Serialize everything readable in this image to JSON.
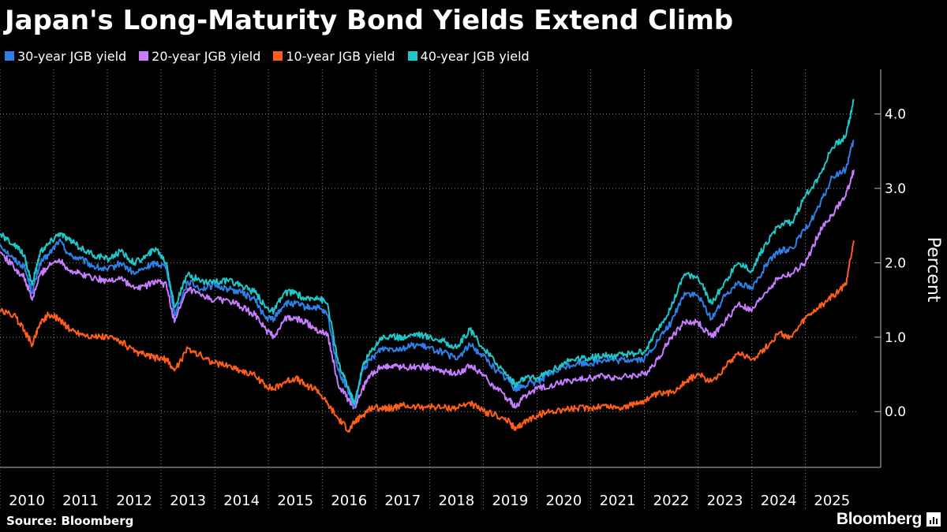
{
  "chart_data": {
    "type": "line",
    "title": "Japan's Long-Maturity Bond Yields Extend Climb",
    "ylabel": "Percent",
    "xlabel": "",
    "xlim": [
      2010.0,
      2025.99
    ],
    "ylim": [
      -0.75,
      4.6
    ],
    "yticks": [
      0.0,
      1.0,
      2.0,
      3.0,
      4.0
    ],
    "ytick_labels": [
      "0.0",
      "1.0",
      "2.0",
      "3.0",
      "4.0"
    ],
    "x_tick_labels": [
      "2010",
      "2011",
      "2012",
      "2013",
      "2014",
      "2015",
      "2016",
      "2017",
      "2018",
      "2019",
      "2020",
      "2021",
      "2022",
      "2023",
      "2024",
      "2025"
    ],
    "grid": "vertical dotted at year boundaries, horizontal dotted at y ticks",
    "legend_position": "top-left",
    "series": [
      {
        "name": "30-year JGB yield",
        "color": "#2f7fe6",
        "x": [
          2010.0,
          2010.25,
          2010.45,
          2010.6,
          2010.75,
          2010.9,
          2011.1,
          2011.3,
          2011.5,
          2011.75,
          2012.0,
          2012.25,
          2012.5,
          2012.75,
          2012.9,
          2013.1,
          2013.25,
          2013.5,
          2013.75,
          2014.0,
          2014.25,
          2014.5,
          2014.75,
          2014.95,
          2015.1,
          2015.3,
          2015.5,
          2015.7,
          2015.9,
          2016.1,
          2016.3,
          2016.5,
          2016.6,
          2016.75,
          2016.9,
          2017.1,
          2017.3,
          2017.5,
          2017.75,
          2018.0,
          2018.25,
          2018.5,
          2018.75,
          2019.0,
          2019.25,
          2019.5,
          2019.6,
          2019.75,
          2020.0,
          2020.25,
          2020.5,
          2020.75,
          2021.0,
          2021.25,
          2021.5,
          2021.75,
          2022.0,
          2022.25,
          2022.5,
          2022.75,
          2023.0,
          2023.25,
          2023.5,
          2023.75,
          2024.0,
          2024.25,
          2024.5,
          2024.75,
          2025.0,
          2025.25,
          2025.5,
          2025.75,
          2025.9
        ],
        "values": [
          2.25,
          2.05,
          1.95,
          1.6,
          2.0,
          2.1,
          2.3,
          2.1,
          2.05,
          1.95,
          1.9,
          2.0,
          1.85,
          1.95,
          2.0,
          1.95,
          1.3,
          1.75,
          1.65,
          1.7,
          1.65,
          1.6,
          1.5,
          1.25,
          1.25,
          1.45,
          1.45,
          1.4,
          1.4,
          1.3,
          0.55,
          0.25,
          0.05,
          0.55,
          0.7,
          0.85,
          0.85,
          0.85,
          0.9,
          0.85,
          0.8,
          0.7,
          0.9,
          0.75,
          0.55,
          0.4,
          0.3,
          0.35,
          0.4,
          0.5,
          0.6,
          0.65,
          0.65,
          0.7,
          0.68,
          0.7,
          0.7,
          0.95,
          1.2,
          1.6,
          1.55,
          1.25,
          1.55,
          1.75,
          1.65,
          1.95,
          2.15,
          2.2,
          2.45,
          2.75,
          3.15,
          3.25,
          3.65
        ]
      },
      {
        "name": "20-year JGB yield",
        "color": "#c77dff",
        "x": [
          2010.0,
          2010.25,
          2010.45,
          2010.6,
          2010.75,
          2010.9,
          2011.1,
          2011.3,
          2011.5,
          2011.75,
          2012.0,
          2012.25,
          2012.5,
          2012.75,
          2012.9,
          2013.1,
          2013.25,
          2013.5,
          2013.75,
          2014.0,
          2014.25,
          2014.5,
          2014.75,
          2014.95,
          2015.1,
          2015.3,
          2015.5,
          2015.7,
          2015.9,
          2016.1,
          2016.3,
          2016.5,
          2016.6,
          2016.75,
          2016.9,
          2017.1,
          2017.3,
          2017.5,
          2017.75,
          2018.0,
          2018.25,
          2018.5,
          2018.75,
          2019.0,
          2019.25,
          2019.5,
          2019.6,
          2019.75,
          2020.0,
          2020.25,
          2020.5,
          2020.75,
          2021.0,
          2021.25,
          2021.5,
          2021.75,
          2022.0,
          2022.25,
          2022.5,
          2022.75,
          2023.0,
          2023.25,
          2023.5,
          2023.75,
          2024.0,
          2024.25,
          2024.5,
          2024.75,
          2025.0,
          2025.25,
          2025.5,
          2025.75,
          2025.9
        ],
        "values": [
          2.15,
          1.95,
          1.8,
          1.5,
          1.85,
          1.95,
          2.05,
          1.9,
          1.85,
          1.8,
          1.75,
          1.8,
          1.65,
          1.7,
          1.75,
          1.7,
          1.2,
          1.65,
          1.55,
          1.5,
          1.5,
          1.4,
          1.3,
          1.1,
          1.0,
          1.25,
          1.25,
          1.2,
          1.1,
          1.05,
          0.35,
          0.15,
          0.05,
          0.3,
          0.5,
          0.6,
          0.62,
          0.6,
          0.6,
          0.6,
          0.55,
          0.5,
          0.62,
          0.5,
          0.3,
          0.15,
          0.05,
          0.2,
          0.3,
          0.35,
          0.4,
          0.42,
          0.45,
          0.48,
          0.45,
          0.48,
          0.5,
          0.7,
          1.0,
          1.2,
          1.2,
          1.0,
          1.2,
          1.45,
          1.35,
          1.6,
          1.8,
          1.85,
          2.0,
          2.4,
          2.65,
          2.9,
          3.25
        ]
      },
      {
        "name": "10-year JGB yield",
        "color": "#ff5e1a",
        "x": [
          2010.0,
          2010.25,
          2010.45,
          2010.6,
          2010.75,
          2010.9,
          2011.1,
          2011.3,
          2011.5,
          2011.75,
          2012.0,
          2012.25,
          2012.5,
          2012.75,
          2012.9,
          2013.1,
          2013.25,
          2013.5,
          2013.75,
          2014.0,
          2014.25,
          2014.5,
          2014.75,
          2014.95,
          2015.1,
          2015.3,
          2015.5,
          2015.7,
          2015.9,
          2016.1,
          2016.3,
          2016.5,
          2016.6,
          2016.75,
          2016.9,
          2017.1,
          2017.3,
          2017.5,
          2017.75,
          2018.0,
          2018.25,
          2018.5,
          2018.75,
          2019.0,
          2019.25,
          2019.5,
          2019.6,
          2019.75,
          2020.0,
          2020.25,
          2020.5,
          2020.75,
          2021.0,
          2021.25,
          2021.5,
          2021.75,
          2022.0,
          2022.25,
          2022.5,
          2022.75,
          2023.0,
          2023.25,
          2023.5,
          2023.75,
          2024.0,
          2024.25,
          2024.5,
          2024.75,
          2025.0,
          2025.25,
          2025.5,
          2025.75,
          2025.9
        ],
        "values": [
          1.35,
          1.3,
          1.1,
          0.9,
          1.2,
          1.3,
          1.25,
          1.1,
          1.05,
          1.0,
          1.0,
          0.95,
          0.8,
          0.75,
          0.72,
          0.7,
          0.55,
          0.85,
          0.75,
          0.65,
          0.62,
          0.55,
          0.48,
          0.35,
          0.3,
          0.4,
          0.45,
          0.35,
          0.3,
          0.1,
          -0.1,
          -0.25,
          -0.15,
          -0.05,
          0.05,
          0.05,
          0.05,
          0.08,
          0.06,
          0.07,
          0.05,
          0.05,
          0.12,
          0.0,
          -0.05,
          -0.15,
          -0.25,
          -0.15,
          -0.05,
          0.0,
          0.03,
          0.04,
          0.05,
          0.08,
          0.05,
          0.08,
          0.15,
          0.23,
          0.25,
          0.4,
          0.5,
          0.4,
          0.6,
          0.8,
          0.7,
          0.85,
          1.05,
          1.0,
          1.25,
          1.4,
          1.55,
          1.7,
          2.3
        ]
      },
      {
        "name": "40-year JGB yield",
        "color": "#1fc7c9",
        "x": [
          2010.0,
          2010.25,
          2010.45,
          2010.6,
          2010.75,
          2010.9,
          2011.1,
          2011.3,
          2011.5,
          2011.75,
          2012.0,
          2012.25,
          2012.5,
          2012.75,
          2012.9,
          2013.1,
          2013.25,
          2013.5,
          2013.75,
          2014.0,
          2014.25,
          2014.5,
          2014.75,
          2014.95,
          2015.1,
          2015.3,
          2015.5,
          2015.7,
          2015.9,
          2016.1,
          2016.3,
          2016.5,
          2016.6,
          2016.75,
          2016.9,
          2017.1,
          2017.3,
          2017.5,
          2017.75,
          2018.0,
          2018.25,
          2018.5,
          2018.75,
          2019.0,
          2019.25,
          2019.5,
          2019.6,
          2019.75,
          2020.0,
          2020.25,
          2020.5,
          2020.75,
          2021.0,
          2021.25,
          2021.5,
          2021.75,
          2022.0,
          2022.25,
          2022.5,
          2022.75,
          2023.0,
          2023.25,
          2023.5,
          2023.75,
          2024.0,
          2024.25,
          2024.5,
          2024.75,
          2025.0,
          2025.25,
          2025.5,
          2025.75,
          2025.9
        ],
        "values": [
          2.38,
          2.25,
          2.1,
          1.7,
          2.15,
          2.25,
          2.4,
          2.3,
          2.2,
          2.1,
          2.05,
          2.15,
          2.0,
          2.1,
          2.2,
          2.0,
          1.4,
          1.85,
          1.75,
          1.75,
          1.75,
          1.7,
          1.6,
          1.4,
          1.35,
          1.6,
          1.6,
          1.5,
          1.55,
          1.45,
          0.65,
          0.3,
          0.1,
          0.6,
          0.8,
          1.0,
          1.0,
          1.0,
          1.05,
          1.0,
          0.95,
          0.85,
          1.1,
          0.85,
          0.65,
          0.45,
          0.35,
          0.45,
          0.45,
          0.55,
          0.65,
          0.72,
          0.72,
          0.75,
          0.75,
          0.78,
          0.8,
          1.1,
          1.4,
          1.85,
          1.8,
          1.45,
          1.75,
          2.0,
          1.9,
          2.25,
          2.5,
          2.55,
          2.9,
          3.15,
          3.55,
          3.7,
          4.2
        ]
      }
    ]
  },
  "footer": {
    "source": "Source: Bloomberg",
    "brand": "Bloomberg"
  }
}
